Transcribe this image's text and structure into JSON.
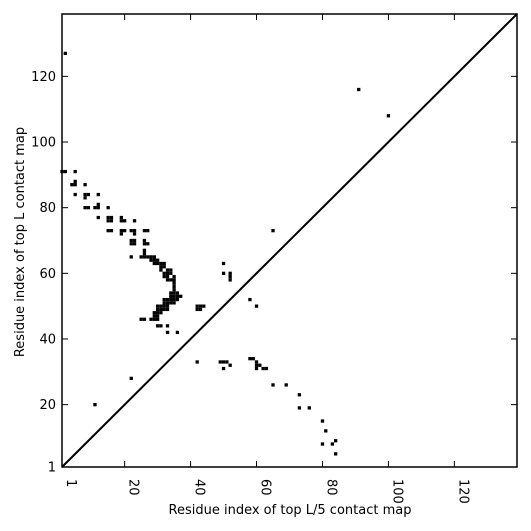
{
  "chart_data": {
    "type": "heatmap",
    "title": "",
    "xlabel": "Residue index of top L/5 contact map",
    "ylabel": "Residue index of top L contact map",
    "xlim": [
      1,
      139
    ],
    "ylim": [
      1,
      139
    ],
    "x_ticks": [
      1,
      20,
      40,
      60,
      80,
      100,
      120
    ],
    "y_ticks": [
      1,
      20,
      40,
      60,
      80,
      100,
      120
    ],
    "diagonal": true,
    "grid": false,
    "contact_color": "#000000",
    "upper_triangle_contacts": [
      [
        91,
        116
      ],
      [
        100,
        108
      ]
    ],
    "lower_triangle_contacts": [
      [
        2,
        127
      ],
      [
        1,
        91
      ],
      [
        2,
        91
      ],
      [
        5,
        91
      ],
      [
        4,
        87
      ],
      [
        5,
        87
      ],
      [
        5,
        88
      ],
      [
        8,
        87
      ],
      [
        5,
        84
      ],
      [
        8,
        84
      ],
      [
        8,
        83
      ],
      [
        9,
        84
      ],
      [
        12,
        84
      ],
      [
        8,
        80
      ],
      [
        9,
        80
      ],
      [
        11,
        80
      ],
      [
        12,
        80
      ],
      [
        12,
        81
      ],
      [
        15,
        80
      ],
      [
        12,
        77
      ],
      [
        15,
        77
      ],
      [
        16,
        77
      ],
      [
        15,
        76
      ],
      [
        16,
        76
      ],
      [
        19,
        77
      ],
      [
        19,
        76
      ],
      [
        20,
        76
      ],
      [
        23,
        76
      ],
      [
        15,
        73
      ],
      [
        16,
        73
      ],
      [
        19,
        73
      ],
      [
        19,
        72
      ],
      [
        20,
        73
      ],
      [
        22,
        73
      ],
      [
        23,
        73
      ],
      [
        23,
        72
      ],
      [
        26,
        73
      ],
      [
        27,
        73
      ],
      [
        22,
        70
      ],
      [
        23,
        70
      ],
      [
        22,
        69
      ],
      [
        23,
        69
      ],
      [
        26,
        70
      ],
      [
        26,
        69
      ],
      [
        27,
        69
      ],
      [
        22,
        65
      ],
      [
        25,
        65
      ],
      [
        26,
        65
      ],
      [
        27,
        65
      ],
      [
        26,
        66
      ],
      [
        26,
        67
      ],
      [
        28,
        65
      ],
      [
        28,
        64
      ],
      [
        29,
        65
      ],
      [
        29,
        64
      ],
      [
        30,
        64
      ],
      [
        29,
        63
      ],
      [
        30,
        63
      ],
      [
        31,
        63
      ],
      [
        32,
        63
      ],
      [
        31,
        62
      ],
      [
        32,
        62
      ],
      [
        33,
        61
      ],
      [
        31,
        61
      ],
      [
        34,
        61
      ],
      [
        32,
        60
      ],
      [
        33,
        60
      ],
      [
        34,
        60
      ],
      [
        32,
        59
      ],
      [
        33,
        59
      ],
      [
        35,
        59
      ],
      [
        33,
        58
      ],
      [
        34,
        58
      ],
      [
        35,
        58
      ],
      [
        35,
        57
      ],
      [
        35,
        56
      ],
      [
        35,
        55
      ],
      [
        34,
        54
      ],
      [
        35,
        54
      ],
      [
        36,
        54
      ],
      [
        34,
        53
      ],
      [
        35,
        53
      ],
      [
        36,
        53
      ],
      [
        37,
        53
      ],
      [
        32,
        52
      ],
      [
        33,
        52
      ],
      [
        34,
        52
      ],
      [
        35,
        52
      ],
      [
        36,
        52
      ],
      [
        32,
        51
      ],
      [
        33,
        51
      ],
      [
        34,
        51
      ],
      [
        35,
        51
      ],
      [
        30,
        50
      ],
      [
        31,
        50
      ],
      [
        32,
        50
      ],
      [
        33,
        50
      ],
      [
        30,
        49
      ],
      [
        31,
        49
      ],
      [
        32,
        49
      ],
      [
        33,
        49
      ],
      [
        29,
        48
      ],
      [
        30,
        48
      ],
      [
        31,
        48
      ],
      [
        29,
        47
      ],
      [
        30,
        47
      ],
      [
        28,
        46
      ],
      [
        29,
        46
      ],
      [
        30,
        46
      ],
      [
        25,
        46
      ],
      [
        26,
        46
      ],
      [
        30,
        44
      ],
      [
        31,
        44
      ],
      [
        33,
        44
      ],
      [
        33,
        42
      ],
      [
        36,
        42
      ],
      [
        42,
        50
      ],
      [
        43,
        50
      ],
      [
        44,
        50
      ],
      [
        42,
        49
      ],
      [
        43,
        49
      ],
      [
        50,
        63
      ],
      [
        50,
        60
      ],
      [
        52,
        60
      ],
      [
        52,
        59
      ],
      [
        52,
        58
      ],
      [
        65,
        73
      ],
      [
        58,
        52
      ],
      [
        60,
        50
      ],
      [
        42,
        33
      ],
      [
        49,
        33
      ],
      [
        50,
        33
      ],
      [
        51,
        33
      ],
      [
        50,
        31
      ],
      [
        52,
        32
      ],
      [
        58,
        34
      ],
      [
        59,
        34
      ],
      [
        60,
        33
      ],
      [
        60,
        32
      ],
      [
        60,
        31
      ],
      [
        61,
        32
      ],
      [
        62,
        31
      ],
      [
        63,
        31
      ],
      [
        65,
        26
      ],
      [
        69,
        26
      ],
      [
        73,
        23
      ],
      [
        73,
        19
      ],
      [
        76,
        19
      ],
      [
        80,
        15
      ],
      [
        81,
        12
      ],
      [
        80,
        8
      ],
      [
        83,
        8
      ],
      [
        84,
        9
      ],
      [
        84,
        5
      ],
      [
        22,
        28
      ],
      [
        11,
        20
      ]
    ]
  }
}
